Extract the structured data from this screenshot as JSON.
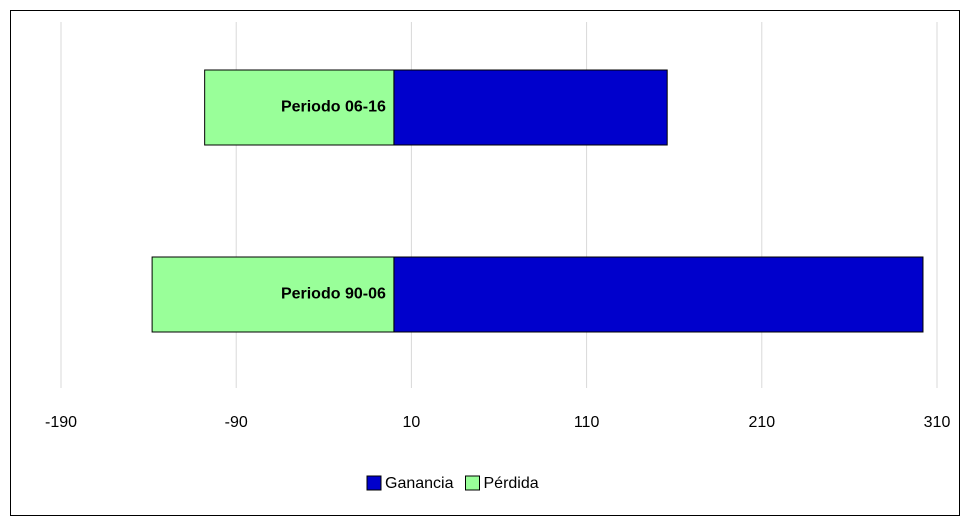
{
  "chart_data": {
    "type": "bar",
    "orientation": "horizontal",
    "stacked": true,
    "categories": [
      "Periodo 06-16",
      "Periodo 90-06"
    ],
    "series": [
      {
        "name": "Ganancia",
        "color": "#0000cc",
        "values": [
          156,
          302
        ]
      },
      {
        "name": "Pérdida",
        "color": "#99ff99",
        "values": [
          -108,
          -138
        ]
      }
    ],
    "xlim": [
      -190,
      310
    ],
    "xticks": [
      -190,
      -90,
      10,
      110,
      210,
      310
    ],
    "grid": true,
    "legend": "bottom"
  }
}
